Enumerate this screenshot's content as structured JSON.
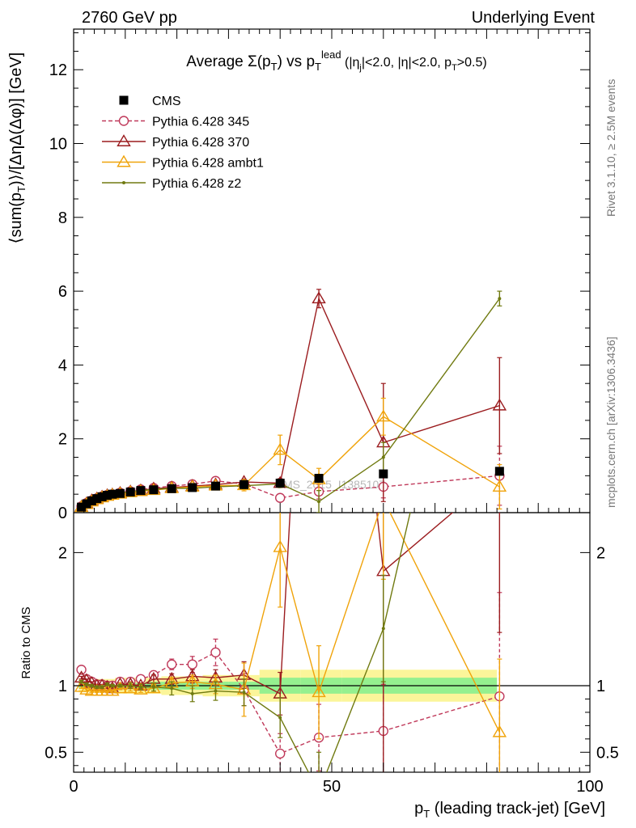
{
  "header": {
    "left": "2760 GeV pp",
    "right": "Underlying Event"
  },
  "side_text": {
    "rivet": "Rivet 3.1.10, ≥ 2.5M events",
    "mcplots": "mcplots.cern.ch [arXiv:1306.3436]"
  },
  "watermark": "CMS_2015_I1385107",
  "chart_data": {
    "type": "line",
    "title": "Average Σ(p_T) vs p_T^lead (|η_j|<2.0, |η|<2.0, p_T>0.5)",
    "xlabel": "p_T (leading track-jet) [GeV]",
    "ylabel": "⟨sum(p_T)⟩/[ΔηΔ(Δφ)] [GeV]",
    "ratio_ylabel": "Ratio to CMS",
    "xlim": [
      0,
      100
    ],
    "ylim": [
      0,
      13.1
    ],
    "ratio_ylim": [
      0.35,
      2.3
    ],
    "x_ticks": [
      0,
      50,
      100
    ],
    "y_ticks": [
      0,
      2,
      4,
      6,
      8,
      10,
      12
    ],
    "ratio_ticks": [
      0.5,
      1,
      2
    ],
    "legend_position": "top-left",
    "x": [
      1.5,
      2.5,
      3.5,
      4.5,
      5.5,
      6.5,
      7.5,
      9,
      11,
      13,
      15.5,
      19,
      23,
      27.5,
      33,
      40,
      47.5,
      60,
      82.5
    ],
    "x_bin_edges": [
      1,
      2,
      3,
      4,
      5,
      6,
      7,
      8,
      10,
      12,
      14,
      17,
      21,
      25,
      30,
      36,
      44,
      52,
      60,
      82,
      100
    ],
    "cms": {
      "name": "CMS",
      "x": [
        1.5,
        2.5,
        3.5,
        4.5,
        5.5,
        6.5,
        7.5,
        9,
        11,
        13,
        15.5,
        19,
        23,
        27.5,
        33,
        40,
        47.5,
        60,
        82.5
      ],
      "y": [
        0.15,
        0.24,
        0.32,
        0.38,
        0.43,
        0.47,
        0.5,
        0.52,
        0.56,
        0.6,
        0.62,
        0.65,
        0.68,
        0.72,
        0.76,
        0.8,
        0.93,
        1.05,
        1.12
      ],
      "band_total": [
        0.05,
        0.05,
        0.05,
        0.05,
        0.05,
        0.05,
        0.05,
        0.06,
        0.06,
        0.06,
        0.06,
        0.07,
        0.07,
        0.08,
        0.08,
        0.12,
        0.12,
        0.12,
        0.12
      ],
      "band_stat": [
        0.02,
        0.02,
        0.02,
        0.02,
        0.02,
        0.02,
        0.02,
        0.02,
        0.02,
        0.02,
        0.03,
        0.03,
        0.03,
        0.03,
        0.03,
        0.06,
        0.06,
        0.06,
        0.06
      ]
    },
    "series": [
      {
        "name": "Pythia 6.428 345",
        "color": "#c0395a",
        "marker": "circle",
        "dashed": true,
        "x": [
          1.5,
          2.5,
          3.5,
          4.5,
          5.5,
          6.5,
          7.5,
          9,
          11,
          13,
          15.5,
          19,
          23,
          27.5,
          33,
          40,
          47.5,
          60,
          82.5
        ],
        "y": [
          0.17,
          0.26,
          0.33,
          0.39,
          0.44,
          0.48,
          0.5,
          0.54,
          0.58,
          0.63,
          0.67,
          0.72,
          0.77,
          0.86,
          0.78,
          0.4,
          0.57,
          0.7,
          1.0
        ],
        "err": [
          0.01,
          0.01,
          0.01,
          0.01,
          0.01,
          0.01,
          0.01,
          0.01,
          0.02,
          0.02,
          0.03,
          0.04,
          0.05,
          0.08,
          0.1,
          0.1,
          0.2,
          0.3,
          0.8
        ],
        "ratio": [
          1.12,
          1.05,
          1.03,
          1.01,
          1.01,
          1.0,
          1.0,
          1.03,
          1.03,
          1.05,
          1.08,
          1.16,
          1.16,
          1.25,
          0.97,
          0.49,
          0.61,
          0.66,
          0.92
        ],
        "ratio_err": [
          0.01,
          0.01,
          0.01,
          0.01,
          0.01,
          0.01,
          0.01,
          0.01,
          0.02,
          0.02,
          0.03,
          0.04,
          0.06,
          0.1,
          0.12,
          0.15,
          0.25,
          0.35,
          0.78
        ]
      },
      {
        "name": "Pythia 6.428 370",
        "color": "#9b1c1f",
        "marker": "triangle",
        "dashed": false,
        "x": [
          1.5,
          2.5,
          3.5,
          4.5,
          5.5,
          6.5,
          7.5,
          9,
          11,
          13,
          15.5,
          19,
          23,
          27.5,
          33,
          40,
          47.5,
          60,
          82.5
        ],
        "y": [
          0.16,
          0.25,
          0.33,
          0.38,
          0.43,
          0.47,
          0.49,
          0.53,
          0.57,
          0.6,
          0.65,
          0.68,
          0.72,
          0.76,
          0.83,
          0.8,
          5.8,
          1.9,
          2.9
        ],
        "err": [
          0.01,
          0.01,
          0.01,
          0.01,
          0.01,
          0.01,
          0.01,
          0.01,
          0.02,
          0.02,
          0.03,
          0.04,
          0.05,
          0.06,
          0.08,
          0.12,
          0.25,
          1.6,
          1.3
        ],
        "ratio": [
          1.06,
          1.04,
          1.02,
          1.0,
          1.0,
          0.99,
          0.98,
          1.01,
          1.01,
          1.0,
          1.05,
          1.05,
          1.07,
          1.06,
          1.08,
          0.94,
          6.24,
          1.86,
          2.6
        ],
        "ratio_err": [
          0.01,
          0.01,
          0.01,
          0.01,
          0.01,
          0.01,
          0.01,
          0.01,
          0.02,
          0.02,
          0.03,
          0.04,
          0.05,
          0.06,
          0.1,
          0.16,
          0.3,
          1.6,
          1.2
        ]
      },
      {
        "name": "Pythia 6.428 ambt1",
        "color": "#f0a30a",
        "marker": "triangle",
        "dashed": false,
        "x": [
          1.5,
          2.5,
          3.5,
          4.5,
          5.5,
          6.5,
          7.5,
          9,
          11,
          13,
          15.5,
          19,
          23,
          27.5,
          33,
          40,
          47.5,
          60,
          82.5
        ],
        "y": [
          0.15,
          0.23,
          0.3,
          0.36,
          0.41,
          0.45,
          0.48,
          0.51,
          0.55,
          0.58,
          0.61,
          0.66,
          0.7,
          0.73,
          0.74,
          1.7,
          0.9,
          2.6,
          0.7
        ],
        "err": [
          0.01,
          0.01,
          0.01,
          0.01,
          0.01,
          0.01,
          0.01,
          0.01,
          0.02,
          0.02,
          0.03,
          0.04,
          0.05,
          0.06,
          0.15,
          0.4,
          0.3,
          0.5,
          0.6
        ],
        "ratio": [
          0.99,
          0.97,
          0.96,
          0.96,
          0.96,
          0.96,
          0.96,
          0.98,
          0.98,
          0.97,
          0.98,
          1.02,
          1.03,
          1.01,
          0.97,
          2.04,
          0.95,
          2.4,
          0.65
        ],
        "ratio_err": [
          0.01,
          0.01,
          0.01,
          0.01,
          0.01,
          0.01,
          0.01,
          0.01,
          0.02,
          0.02,
          0.03,
          0.04,
          0.05,
          0.07,
          0.2,
          0.45,
          0.35,
          0.6,
          0.55
        ]
      },
      {
        "name": "Pythia 6.428 z2",
        "color": "#707a10",
        "marker": "dot",
        "dashed": false,
        "x": [
          1.5,
          2.5,
          3.5,
          4.5,
          5.5,
          6.5,
          7.5,
          9,
          11,
          13,
          15.5,
          19,
          23,
          27.5,
          33,
          40,
          47.5,
          60,
          82.5
        ],
        "y": [
          0.16,
          0.25,
          0.32,
          0.38,
          0.43,
          0.48,
          0.5,
          0.53,
          0.57,
          0.6,
          0.63,
          0.66,
          0.66,
          0.7,
          0.73,
          0.78,
          0.3,
          1.5,
          5.8
        ],
        "err": [
          0.01,
          0.01,
          0.01,
          0.01,
          0.01,
          0.01,
          0.01,
          0.01,
          0.02,
          0.02,
          0.03,
          0.04,
          0.05,
          0.06,
          0.08,
          0.1,
          0.3,
          0.4,
          0.2
        ],
        "ratio": [
          1.03,
          1.01,
          1.0,
          0.99,
          0.99,
          1.01,
          1.0,
          1.0,
          1.0,
          0.99,
          0.99,
          0.98,
          0.94,
          0.96,
          0.95,
          0.76,
          0.2,
          1.43,
          5.2
        ],
        "ratio_err": [
          0.01,
          0.01,
          0.01,
          0.01,
          0.01,
          0.01,
          0.01,
          0.01,
          0.02,
          0.02,
          0.03,
          0.05,
          0.06,
          0.07,
          0.1,
          0.15,
          0.3,
          0.4,
          0.3
        ]
      }
    ]
  }
}
